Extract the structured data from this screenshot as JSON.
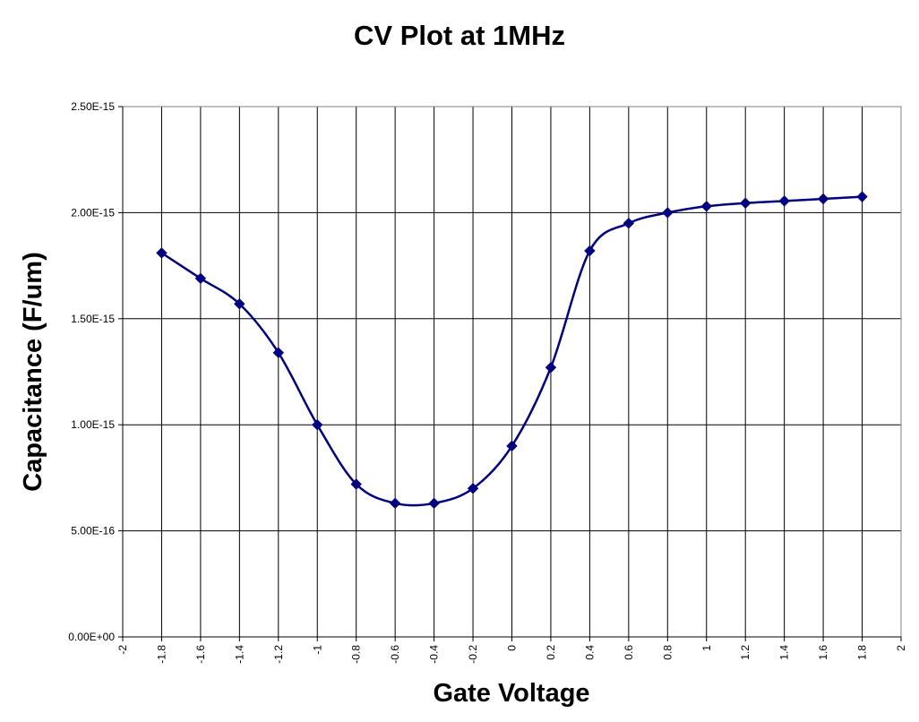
{
  "chart_data": {
    "type": "line",
    "title": "CV Plot at 1MHz",
    "xlabel": "Gate Voltage",
    "ylabel": "Capacitance (F/um)",
    "xlim": [
      -2,
      2
    ],
    "ylim": [
      0,
      2.5e-15
    ],
    "x_ticks": [
      "-2",
      "-1.8",
      "-1.6",
      "-1.4",
      "-1.2",
      "-1",
      "-0.8",
      "-0.6",
      "-0.4",
      "-0.2",
      "0",
      "0.2",
      "0.4",
      "0.6",
      "0.8",
      "1",
      "1.2",
      "1.4",
      "1.6",
      "1.8",
      "2"
    ],
    "y_ticks": [
      "0.00E+00",
      "5.00E-16",
      "1.00E-15",
      "1.50E-15",
      "2.00E-15",
      "2.50E-15"
    ],
    "grid": true,
    "legend": "none",
    "series": [
      {
        "color": "#000080",
        "marker": "diamond",
        "smooth": true,
        "x": [
          -1.8,
          -1.6,
          -1.4,
          -1.2,
          -1.0,
          -0.8,
          -0.6,
          -0.4,
          -0.2,
          0.0,
          0.2,
          0.4,
          0.6,
          0.8,
          1.0,
          1.2,
          1.4,
          1.6,
          1.8
        ],
        "y": [
          1.81e-15,
          1.69e-15,
          1.57e-15,
          1.34e-15,
          1e-15,
          7.2e-16,
          6.3e-16,
          6.3e-16,
          7e-16,
          9e-16,
          1.27e-15,
          1.82e-15,
          1.95e-15,
          2e-15,
          2.03e-15,
          2.045e-15,
          2.055e-15,
          2.065e-15,
          2.075e-15
        ]
      }
    ]
  }
}
